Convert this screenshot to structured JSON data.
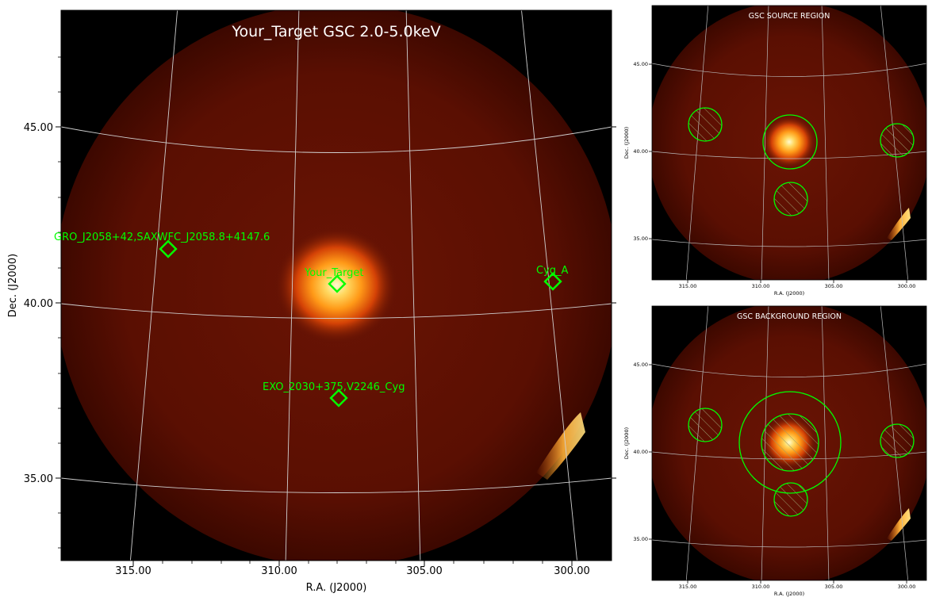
{
  "main_panel": {
    "title": "Your_Target GSC 2.0-5.0keV",
    "xlabel": "R.A. (J2000)",
    "ylabel": "Dec. (J2000)",
    "x_ticks": [
      "315.00",
      "310.00",
      "305.00",
      "300.00"
    ],
    "y_ticks": [
      "45.00",
      "40.00",
      "35.00"
    ],
    "sources": [
      {
        "label": "GRO_J2058+42,SAXWFC_J2058.8+4147.6"
      },
      {
        "label": "Your_Target"
      },
      {
        "label": "Cyg_A"
      },
      {
        "label": "EXO_2030+375,V2246_Cyg"
      }
    ]
  },
  "source_panel": {
    "title": "GSC SOURCE REGION",
    "xlabel": "R.A. (J2000)",
    "ylabel": "Dec. (J2000)",
    "x_ticks": [
      "315.00",
      "310.00",
      "305.00",
      "300.00"
    ],
    "y_ticks": [
      "45.00",
      "40.00",
      "35.00"
    ]
  },
  "background_panel": {
    "title": "GSC BACKGROUND REGION",
    "xlabel": "R.A. (J2000)",
    "ylabel": "Dec. (J2000)",
    "x_ticks": [
      "315.00",
      "310.00",
      "305.00",
      "300.00"
    ],
    "y_ticks": [
      "45.00",
      "40.00",
      "35.00"
    ]
  },
  "colors": {
    "region": "#00ff00",
    "grid": "#d0d0d0",
    "background": "#000000",
    "diffuse": "#5a0e02",
    "bright": "#fff2a0"
  }
}
